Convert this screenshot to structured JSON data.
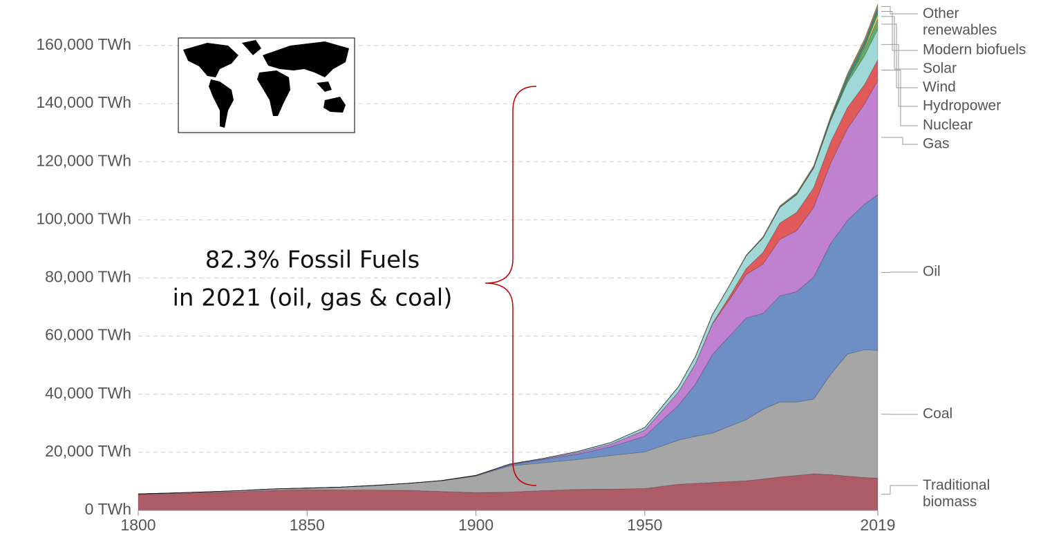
{
  "chart_data": {
    "type": "stacked_area",
    "x": [
      1800,
      1810,
      1820,
      1830,
      1840,
      1850,
      1860,
      1870,
      1880,
      1890,
      1900,
      1910,
      1920,
      1930,
      1940,
      1950,
      1960,
      1965,
      1970,
      1975,
      1980,
      1985,
      1990,
      1995,
      2000,
      2005,
      2010,
      2015,
      2019
    ],
    "series": [
      {
        "name": "Traditional biomass",
        "color": "#ad5b66",
        "label_color": "#9c2e3a",
        "values": [
          5556,
          5800,
          6100,
          6400,
          6900,
          7100,
          7000,
          7000,
          6900,
          6500,
          6100,
          6300,
          6800,
          7200,
          7300,
          7500,
          9000,
          9300,
          9600,
          9900,
          10200,
          10800,
          11500,
          12000,
          12600,
          12300,
          11800,
          11300,
          11100
        ]
      },
      {
        "name": "Coal",
        "color": "#a6a6a6",
        "label_color": "#777777",
        "values": [
          97,
          200,
          300,
          400,
          500,
          570,
          1000,
          1600,
          2400,
          3700,
          5700,
          9000,
          9600,
          10300,
          11600,
          12600,
          15200,
          16200,
          17000,
          19000,
          21000,
          24000,
          25800,
          25300,
          25700,
          34500,
          42000,
          44000,
          44000
        ]
      },
      {
        "name": "Oil",
        "color": "#6d8fc6",
        "label_color": "#3b5fa8",
        "values": [
          0,
          0,
          0,
          0,
          0,
          0,
          0,
          10,
          30,
          80,
          180,
          380,
          1100,
          1800,
          3000,
          5400,
          12000,
          18000,
          27000,
          31000,
          35000,
          33000,
          36500,
          38000,
          42000,
          45000,
          46000,
          50000,
          53600
        ]
      },
      {
        "name": "Gas",
        "color": "#c081d0",
        "label_color": "#b055c8",
        "values": [
          0,
          0,
          0,
          0,
          0,
          0,
          0,
          0,
          0,
          20,
          60,
          160,
          230,
          550,
          900,
          2100,
          4600,
          7000,
          10500,
          12500,
          15000,
          17000,
          19500,
          21000,
          24000,
          27600,
          31600,
          34500,
          39300
        ]
      },
      {
        "name": "Nuclear",
        "color": "#e05a5a",
        "label_color": "#d63838",
        "values": [
          0,
          0,
          0,
          0,
          0,
          0,
          0,
          0,
          0,
          0,
          0,
          0,
          0,
          0,
          0,
          0,
          0,
          70,
          220,
          1100,
          2000,
          4000,
          5600,
          6300,
          6800,
          7300,
          7200,
          6700,
          7100
        ]
      },
      {
        "name": "Hydropower",
        "color": "#a0d8d8",
        "label_color": "#5cb3c4",
        "values": [
          0,
          0,
          0,
          0,
          0,
          0,
          0,
          0,
          0,
          0,
          0,
          100,
          200,
          400,
          600,
          900,
          1800,
          2400,
          3000,
          3700,
          4400,
          5000,
          5400,
          6100,
          6700,
          7400,
          8600,
          9900,
          10500
        ]
      },
      {
        "name": "Wind",
        "color": "#5fad6f",
        "label_color": "#5aa667",
        "values": [
          0,
          0,
          0,
          0,
          0,
          0,
          0,
          0,
          0,
          0,
          0,
          0,
          0,
          0,
          0,
          0,
          0,
          0,
          0,
          0,
          0,
          0,
          10,
          20,
          80,
          270,
          880,
          2100,
          3500
        ]
      },
      {
        "name": "Solar",
        "color": "#e8c84a",
        "label_color": "#d6b52e",
        "values": [
          0,
          0,
          0,
          0,
          0,
          0,
          0,
          0,
          0,
          0,
          0,
          0,
          0,
          0,
          0,
          0,
          0,
          0,
          0,
          0,
          0,
          0,
          0,
          0,
          10,
          20,
          80,
          650,
          1800
        ]
      },
      {
        "name": "Modern biofuels",
        "color": "#2d9a92",
        "label_color": "#2a9a95",
        "values": [
          0,
          0,
          0,
          0,
          0,
          0,
          0,
          0,
          0,
          0,
          0,
          0,
          0,
          0,
          0,
          0,
          0,
          0,
          0,
          0,
          50,
          100,
          160,
          190,
          230,
          450,
          1200,
          1500,
          1700
        ]
      },
      {
        "name": "Other renewables",
        "color": "#9c8058",
        "label_color": "#9c7a4a",
        "values": [
          0,
          0,
          0,
          0,
          0,
          0,
          0,
          0,
          0,
          0,
          0,
          0,
          0,
          0,
          0,
          0,
          0,
          100,
          150,
          200,
          250,
          320,
          400,
          500,
          600,
          800,
          1000,
          1500,
          1700
        ]
      }
    ],
    "annotation": [
      "82.3% Fossil Fuels",
      "in 2021 (oil, gas & coal)"
    ],
    "xlim": [
      1800,
      2019
    ],
    "xticks": [
      1800,
      1850,
      1900,
      1950,
      2019
    ],
    "ylim": [
      0,
      175000
    ],
    "yticks": [
      {
        "value": 0,
        "label": "0 TWh"
      },
      {
        "value": 20000,
        "label": "20,000 TWh"
      },
      {
        "value": 40000,
        "label": "40,000 TWh"
      },
      {
        "value": 60000,
        "label": "60,000 TWh"
      },
      {
        "value": 80000,
        "label": "80,000 TWh"
      },
      {
        "value": 100000,
        "label": "100,000 TWh"
      },
      {
        "value": 120000,
        "label": "120,000 TWh"
      },
      {
        "value": 140000,
        "label": "140,000 TWh"
      },
      {
        "value": 160000,
        "label": "160,000 TWh"
      }
    ],
    "grid": true
  }
}
